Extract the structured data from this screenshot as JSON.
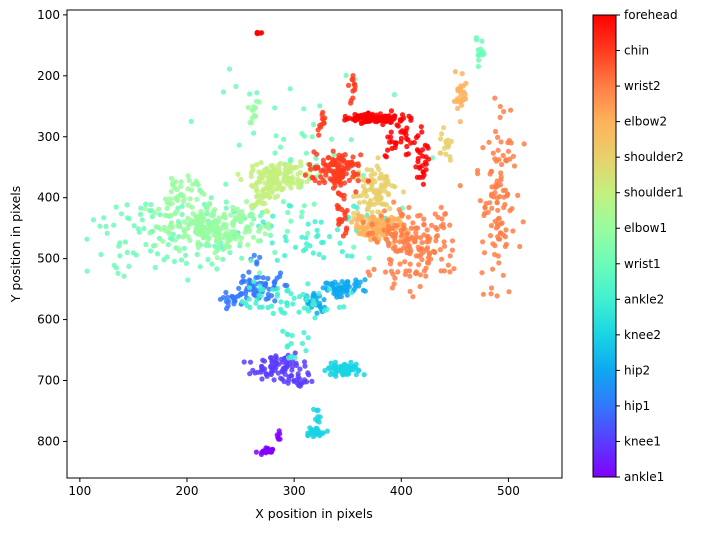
{
  "chart_data": {
    "type": "scatter",
    "title": "",
    "xlabel": "X position in pixels",
    "ylabel": "Y position in pixels",
    "xlim": [
      88,
      550
    ],
    "ylim": [
      860,
      92
    ],
    "y_inverted": true,
    "xticks": [
      100,
      200,
      300,
      400,
      500
    ],
    "yticks": [
      100,
      200,
      300,
      400,
      500,
      600,
      700,
      800
    ],
    "grid": false,
    "colormap": "rainbow",
    "colorbar": {
      "labels": [
        "ankle1",
        "knee1",
        "hip1",
        "hip2",
        "knee2",
        "ankle2",
        "wrist1",
        "elbow1",
        "shoulder1",
        "shoulder2",
        "elbow2",
        "wrist2",
        "chin",
        "forehead"
      ],
      "colors": [
        "#8000ff",
        "#5a3cfe",
        "#3278fb",
        "#0ea8f0",
        "#1ad4e4",
        "#42f0d0",
        "#6cfcb8",
        "#98fca0",
        "#c4f07e",
        "#e8d06a",
        "#feb25c",
        "#ff7e46",
        "#ff3c1e",
        "#ff0000"
      ]
    },
    "series": [
      {
        "name": "ankle1",
        "clusters": [
          {
            "cx": 275,
            "cy": 815,
            "rx": 7,
            "ry": 5,
            "n": 28
          },
          {
            "cx": 285,
            "cy": 790,
            "rx": 2,
            "ry": 10,
            "n": 6
          }
        ]
      },
      {
        "name": "knee1",
        "clusters": [
          {
            "cx": 285,
            "cy": 680,
            "rx": 22,
            "ry": 18,
            "n": 80
          },
          {
            "cx": 305,
            "cy": 700,
            "rx": 15,
            "ry": 10,
            "n": 15
          }
        ]
      },
      {
        "name": "hip1",
        "clusters": [
          {
            "cx": 270,
            "cy": 545,
            "rx": 20,
            "ry": 18,
            "n": 60
          },
          {
            "cx": 245,
            "cy": 565,
            "rx": 10,
            "ry": 12,
            "n": 20
          },
          {
            "cx": 263,
            "cy": 500,
            "rx": 5,
            "ry": 12,
            "n": 5
          }
        ]
      },
      {
        "name": "hip2",
        "clusters": [
          {
            "cx": 345,
            "cy": 548,
            "rx": 18,
            "ry": 12,
            "n": 60
          },
          {
            "cx": 318,
            "cy": 572,
            "rx": 10,
            "ry": 15,
            "n": 25
          }
        ]
      },
      {
        "name": "knee2",
        "clusters": [
          {
            "cx": 345,
            "cy": 680,
            "rx": 15,
            "ry": 12,
            "n": 60
          },
          {
            "cx": 320,
            "cy": 785,
            "rx": 8,
            "ry": 7,
            "n": 25
          },
          {
            "cx": 322,
            "cy": 755,
            "rx": 3,
            "ry": 12,
            "n": 8
          }
        ]
      },
      {
        "name": "ankle2",
        "clusters": [
          {
            "cx": 290,
            "cy": 570,
            "rx": 50,
            "ry": 25,
            "n": 55
          },
          {
            "cx": 320,
            "cy": 460,
            "rx": 55,
            "ry": 50,
            "n": 50
          },
          {
            "cx": 300,
            "cy": 640,
            "rx": 12,
            "ry": 30,
            "n": 15
          }
        ]
      },
      {
        "name": "wrist1",
        "clusters": [
          {
            "cx": 195,
            "cy": 460,
            "rx": 80,
            "ry": 70,
            "n": 110
          },
          {
            "cx": 300,
            "cy": 350,
            "rx": 90,
            "ry": 160,
            "n": 60
          },
          {
            "cx": 475,
            "cy": 165,
            "rx": 5,
            "ry": 25,
            "n": 14
          }
        ]
      },
      {
        "name": "elbow1",
        "clusters": [
          {
            "cx": 225,
            "cy": 450,
            "rx": 45,
            "ry": 30,
            "n": 200
          },
          {
            "cx": 195,
            "cy": 390,
            "rx": 25,
            "ry": 30,
            "n": 40
          },
          {
            "cx": 262,
            "cy": 260,
            "rx": 6,
            "ry": 25,
            "n": 12
          }
        ]
      },
      {
        "name": "shoulder1",
        "clusters": [
          {
            "cx": 285,
            "cy": 365,
            "rx": 25,
            "ry": 20,
            "n": 130
          },
          {
            "cx": 270,
            "cy": 400,
            "rx": 12,
            "ry": 25,
            "n": 35
          }
        ]
      },
      {
        "name": "shoulder2",
        "clusters": [
          {
            "cx": 375,
            "cy": 390,
            "rx": 18,
            "ry": 40,
            "n": 90
          },
          {
            "cx": 440,
            "cy": 320,
            "rx": 8,
            "ry": 30,
            "n": 15
          }
        ]
      },
      {
        "name": "elbow2",
        "clusters": [
          {
            "cx": 380,
            "cy": 450,
            "rx": 22,
            "ry": 20,
            "n": 130
          },
          {
            "cx": 455,
            "cy": 230,
            "rx": 8,
            "ry": 35,
            "n": 25
          }
        ]
      },
      {
        "name": "wrist2",
        "clusters": [
          {
            "cx": 410,
            "cy": 480,
            "rx": 35,
            "ry": 60,
            "n": 170
          },
          {
            "cx": 490,
            "cy": 400,
            "rx": 15,
            "ry": 130,
            "n": 110
          }
        ]
      },
      {
        "name": "chin",
        "clusters": [
          {
            "cx": 340,
            "cy": 355,
            "rx": 20,
            "ry": 25,
            "n": 120
          },
          {
            "cx": 345,
            "cy": 430,
            "rx": 5,
            "ry": 35,
            "n": 25
          },
          {
            "cx": 325,
            "cy": 280,
            "rx": 4,
            "ry": 25,
            "n": 12
          },
          {
            "cx": 355,
            "cy": 225,
            "rx": 4,
            "ry": 30,
            "n": 12
          }
        ]
      },
      {
        "name": "forehead",
        "clusters": [
          {
            "cx": 375,
            "cy": 270,
            "rx": 25,
            "ry": 8,
            "n": 110
          },
          {
            "cx": 400,
            "cy": 300,
            "rx": 15,
            "ry": 30,
            "n": 40
          },
          {
            "cx": 420,
            "cy": 350,
            "rx": 6,
            "ry": 40,
            "n": 25
          },
          {
            "cx": 268,
            "cy": 129,
            "rx": 4,
            "ry": 2,
            "n": 6
          }
        ]
      }
    ]
  }
}
